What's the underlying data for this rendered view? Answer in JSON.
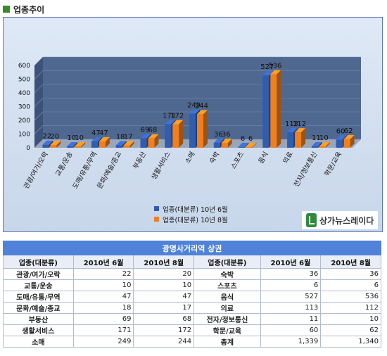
{
  "header": {
    "title": "업종추이"
  },
  "chart_data": {
    "type": "bar",
    "categories": [
      "관광/여가/오락",
      "교통/운송",
      "도매/유통/무역",
      "문화/예술/종교",
      "부동산",
      "생활서비스",
      "소매",
      "숙박",
      "스포츠",
      "음식",
      "의료",
      "전자/정보통신",
      "학문/교육"
    ],
    "series": [
      {
        "name": "업종(대분류) 10년 6월",
        "color": "#2f5db0",
        "values": [
          22,
          10,
          47,
          18,
          69,
          171,
          249,
          36,
          6,
          527,
          113,
          11,
          60
        ]
      },
      {
        "name": "업종(대분류) 10년 8월",
        "color": "#f07f1e",
        "values": [
          20,
          10,
          47,
          17,
          68,
          172,
          244,
          36,
          6,
          536,
          112,
          10,
          62
        ]
      }
    ],
    "yticks": [
      0,
      100,
      200,
      300,
      400,
      500,
      600
    ],
    "ylim": [
      0,
      600
    ],
    "legend_position": "bottom"
  },
  "logo": {
    "text": "상가뉴스레이다"
  },
  "table": {
    "title": "광명사거리역 상권",
    "headers": [
      "업종(대분류)",
      "2010년 6월",
      "2010년 8월",
      "업종(대분류)",
      "2010년 6월",
      "2010년 8월"
    ],
    "rows": [
      [
        "관광/여가/오락",
        "22",
        "20",
        "숙박",
        "36",
        "36"
      ],
      [
        "교통/운송",
        "10",
        "10",
        "스포츠",
        "6",
        "6"
      ],
      [
        "도매/유통/무역",
        "47",
        "47",
        "음식",
        "527",
        "536"
      ],
      [
        "문화/예술/종교",
        "18",
        "17",
        "의료",
        "113",
        "112"
      ],
      [
        "부동산",
        "69",
        "68",
        "전자/정보통신",
        "11",
        "10"
      ],
      [
        "생활서비스",
        "171",
        "172",
        "학문/교육",
        "60",
        "62"
      ],
      [
        "소매",
        "249",
        "244",
        "총계",
        "1,339",
        "1,340"
      ]
    ]
  }
}
